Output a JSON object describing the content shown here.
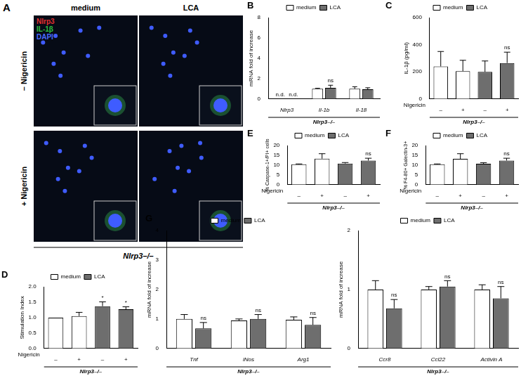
{
  "panel_a": {
    "panel": "A",
    "columns": [
      "medium",
      "LCA"
    ],
    "rows": [
      "– Nigericin",
      "+ Nigericin"
    ],
    "stains": [
      {
        "text": "Nlrp3",
        "color": "#e03030"
      },
      {
        "text": "IL-1β",
        "color": "#30c040"
      },
      {
        "text": "DAPI",
        "color": "#4a6cff"
      }
    ],
    "x_label": "Nlrp3–/–"
  },
  "chart_data": [
    {
      "panel": "B",
      "type": "bar",
      "categories": [
        "Nlrp3",
        "Il-1b",
        "Il-18"
      ],
      "series": [
        {
          "name": "medium",
          "color": "#ffffff",
          "values": [
            null,
            1.0,
            1.0
          ],
          "errors": [
            null,
            0.05,
            0.2
          ]
        },
        {
          "name": "LCA",
          "color": "#6e6e6e",
          "values": [
            null,
            1.1,
            0.95
          ],
          "errors": [
            null,
            0.25,
            0.15
          ]
        }
      ],
      "ylim": [
        0,
        8
      ],
      "yticks": [
        0,
        2,
        4,
        6,
        8
      ],
      "y_label": "mRNA fold of increase",
      "x_label": "Nlrp3–/–",
      "annotations": [
        {
          "text": "n.d.",
          "index": 0,
          "series": "medium"
        },
        {
          "text": "n.d.",
          "index": 0,
          "series": "LCA"
        },
        {
          "text": "ns",
          "index": 1,
          "series": "LCA"
        }
      ],
      "grid": false,
      "legend": "top"
    },
    {
      "panel": "C",
      "type": "bar",
      "categories": [
        "–",
        "+",
        "–",
        "+"
      ],
      "series": [
        {
          "name": "medium",
          "color": "#ffffff",
          "values": [
            240,
            205,
            null,
            null
          ],
          "errors": [
            110,
            80,
            null,
            null
          ]
        },
        {
          "name": "LCA",
          "color": "#6e6e6e",
          "values": [
            null,
            null,
            200,
            265
          ],
          "errors": [
            null,
            null,
            80,
            80
          ]
        }
      ],
      "ylim": [
        0,
        600
      ],
      "yticks": [
        0,
        200,
        400,
        600
      ],
      "y_label": "IL-1β (pg/ml)",
      "x_row_label": "Nigericin",
      "x_label": "Nlrp3–/–",
      "annotations": [
        {
          "text": "ns",
          "index": 3,
          "series": "LCA"
        }
      ],
      "grid": false,
      "legend": "top"
    },
    {
      "panel": "D",
      "type": "bar",
      "categories": [
        "–",
        "+",
        "–",
        "+"
      ],
      "series": [
        {
          "name": "medium",
          "color": "#ffffff",
          "values": [
            1.0,
            1.05,
            null,
            null
          ],
          "errors": [
            0,
            0.12,
            null,
            null
          ]
        },
        {
          "name": "LCA",
          "color": "#6e6e6e",
          "values": [
            null,
            null,
            1.37,
            1.27
          ],
          "errors": [
            null,
            null,
            0.14,
            0.08
          ]
        }
      ],
      "ylim": [
        0,
        2
      ],
      "yticks": [
        {
          "value": 0,
          "label": "0.0"
        },
        0.5,
        {
          "value": 1,
          "label": "1.0"
        },
        1.5,
        {
          "value": 2,
          "label": "2.0"
        }
      ],
      "y_label": "Stimulation Index",
      "x_row_label": "Nigericin",
      "x_label": "Nlrp3–/–",
      "annotations": [
        {
          "text": "*",
          "index": 2,
          "series": "LCA"
        },
        {
          "text": "*",
          "index": 3,
          "series": "LCA"
        }
      ],
      "grid": false,
      "legend": "top"
    },
    {
      "panel": "E",
      "type": "bar",
      "categories": [
        "–",
        "+",
        "–",
        "+"
      ],
      "series": [
        {
          "name": "medium",
          "color": "#ffffff",
          "values": [
            10.4,
            13.3,
            null,
            null
          ],
          "errors": [
            0.2,
            2.5,
            null,
            null
          ]
        },
        {
          "name": "LCA",
          "color": "#6e6e6e",
          "values": [
            null,
            null,
            10.8,
            12.3
          ],
          "errors": [
            null,
            null,
            0.5,
            1.2
          ]
        }
      ],
      "ylim": [
        0,
        20
      ],
      "yticks": [
        0,
        5,
        10,
        15,
        20
      ],
      "y_label": "% Caspase-1+/PI+ cells",
      "x_row_label": "Nigericin",
      "x_label": "Nlrp3–/–",
      "annotations": [
        {
          "text": "ns",
          "index": 3,
          "series": "LCA"
        }
      ],
      "grid": false,
      "legend": "top"
    },
    {
      "panel": "F",
      "type": "bar",
      "categories": [
        "–",
        "+",
        "–",
        "+"
      ],
      "series": [
        {
          "name": "medium",
          "color": "#ffffff",
          "values": [
            10.4,
            13.2,
            null,
            null
          ],
          "errors": [
            0.2,
            2.6,
            null,
            null
          ]
        },
        {
          "name": "LCA",
          "color": "#6e6e6e",
          "values": [
            null,
            null,
            10.7,
            12.3
          ],
          "errors": [
            null,
            null,
            0.5,
            1.2
          ]
        }
      ],
      "ylim": [
        0,
        20
      ],
      "yticks": [
        0,
        5,
        10,
        15,
        20
      ],
      "y_label": "% F4-80+ Galectin-3+",
      "x_row_label": "Nigericin",
      "x_label": "Nlrp3–/–",
      "annotations": [
        {
          "text": "ns",
          "index": 3,
          "series": "LCA"
        }
      ],
      "grid": false,
      "legend": "top"
    },
    {
      "panel": "G",
      "type": "bar",
      "categories": [
        "Tnf",
        "iNos",
        "Arg1"
      ],
      "series": [
        {
          "name": "medium",
          "color": "#ffffff",
          "values": [
            1.0,
            0.95,
            0.97
          ],
          "errors": [
            0.15,
            0.05,
            0.1
          ]
        },
        {
          "name": "LCA",
          "color": "#6e6e6e",
          "values": [
            0.68,
            1.0,
            0.8
          ],
          "errors": [
            0.2,
            0.15,
            0.25
          ]
        }
      ],
      "ylim": [
        0,
        4
      ],
      "yticks": [
        0,
        1,
        2,
        3,
        4
      ],
      "y_label": "mRNA fold of increase",
      "x_label": "Nlrp3–/–",
      "annotations": [
        {
          "text": "ns",
          "index": 0,
          "series": "LCA"
        },
        {
          "text": "ns",
          "index": 1,
          "series": "LCA"
        },
        {
          "text": "ns",
          "index": 2,
          "series": "LCA"
        }
      ],
      "grid": false,
      "legend": "top"
    },
    {
      "type": "bar",
      "categories": [
        "Ccr8",
        "Ccl22",
        "Activin A"
      ],
      "series": [
        {
          "name": "medium",
          "color": "#ffffff",
          "values": [
            1.0,
            1.0,
            1.0
          ],
          "errors": [
            0.15,
            0.05,
            0.08
          ]
        },
        {
          "name": "LCA",
          "color": "#6e6e6e",
          "values": [
            0.68,
            1.05,
            0.85
          ],
          "errors": [
            0.15,
            0.1,
            0.2
          ]
        }
      ],
      "ylim": [
        0,
        2
      ],
      "yticks": [
        0,
        1,
        2
      ],
      "y_label": "mRNA fold of increase",
      "x_label": "Nlrp3–/–",
      "annotations": [
        {
          "text": "ns",
          "index": 0,
          "series": "LCA"
        },
        {
          "text": "ns",
          "index": 1,
          "series": "LCA"
        },
        {
          "text": "ns",
          "index": 2,
          "series": "LCA"
        }
      ],
      "grid": false,
      "legend": "top"
    }
  ]
}
